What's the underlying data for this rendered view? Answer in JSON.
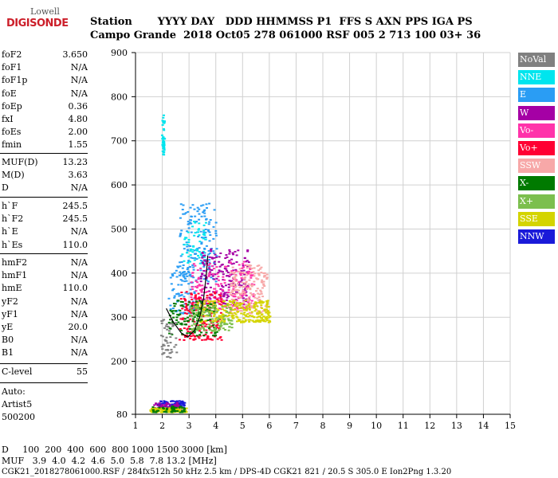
{
  "logo": {
    "line1": "Lowell",
    "line2": "DIGISONDE"
  },
  "header": {
    "row1": "Station       YYYY DAY   DDD HHMMSS P1  FFS S AXN PPS IGA PS",
    "row2": "Campo Grande  2018 Oct05 278 061000 RSF 005 2 713 100 03+ 36"
  },
  "params_group1": [
    {
      "name": "foF2",
      "value": "3.650"
    },
    {
      "name": "foF1",
      "value": "N/A"
    },
    {
      "name": "foF1p",
      "value": "N/A"
    },
    {
      "name": "foE",
      "value": "N/A"
    },
    {
      "name": "foEp",
      "value": "0.36"
    },
    {
      "name": "fxI",
      "value": "4.80"
    },
    {
      "name": "foEs",
      "value": "2.00"
    },
    {
      "name": "fmin",
      "value": "1.55"
    }
  ],
  "params_group2": [
    {
      "name": "MUF(D)",
      "value": "13.23"
    },
    {
      "name": "M(D)",
      "value": "3.63"
    },
    {
      "name": "D",
      "value": "N/A"
    }
  ],
  "params_group3": [
    {
      "name": "h`F",
      "value": "245.5"
    },
    {
      "name": "h`F2",
      "value": "245.5"
    },
    {
      "name": "h`E",
      "value": "N/A"
    },
    {
      "name": "h`Es",
      "value": "110.0"
    }
  ],
  "params_group4": [
    {
      "name": "hmF2",
      "value": "N/A"
    },
    {
      "name": "hmF1",
      "value": "N/A"
    },
    {
      "name": "hmE",
      "value": "110.0"
    },
    {
      "name": "yF2",
      "value": "N/A"
    },
    {
      "name": "yF1",
      "value": "N/A"
    },
    {
      "name": "yE",
      "value": "20.0"
    },
    {
      "name": "B0",
      "value": "N/A"
    },
    {
      "name": "B1",
      "value": "N/A"
    }
  ],
  "clevel": {
    "name": "C-level",
    "value": "55"
  },
  "auto": {
    "line1": "Auto:",
    "line2": "Artist5",
    "line3": "500200"
  },
  "legend": [
    {
      "label": "NoVal",
      "color": "#808080"
    },
    {
      "label": "NNE",
      "color": "#00e5ee"
    },
    {
      "label": "E",
      "color": "#2a9df4"
    },
    {
      "label": "W",
      "color": "#a500a5"
    },
    {
      "label": "Vo-",
      "color": "#ff33aa"
    },
    {
      "label": "Vo+",
      "color": "#ff0033"
    },
    {
      "label": "SSW",
      "color": "#f7a8a8"
    },
    {
      "label": "X-",
      "color": "#007a00"
    },
    {
      "label": "X+",
      "color": "#7cbf4e"
    },
    {
      "label": "SSE",
      "color": "#d4d400"
    },
    {
      "label": "NNW",
      "color": "#1a1ad9"
    }
  ],
  "bottom": {
    "row1": "D     100  200  400  600  800 1000 1500 3000 [km]",
    "row2": "MUF   3.9  4.0  4.2  4.6  5.0  5.8  7.8 13.2 [MHz]",
    "row3": "CGK21_2018278061000.RSF / 284fx512h 50 kHz 2.5 km / DPS-4D CGK21 821 / 20.5 S 305.0 E Ion2Png 1.3.20"
  },
  "chart_data": {
    "type": "scatter",
    "xlim": [
      1,
      15
    ],
    "ylim": [
      80,
      900
    ],
    "xticks": [
      1,
      2,
      3,
      4,
      5,
      6,
      7,
      8,
      9,
      10,
      11,
      12,
      13,
      14,
      15
    ],
    "yticks": [
      80,
      200,
      300,
      400,
      500,
      600,
      700,
      800,
      900
    ],
    "grid": true,
    "clusters": [
      {
        "series": "NNE",
        "x": [
          1.95,
          2.05
        ],
        "y": [
          670,
          760
        ],
        "n": 40
      },
      {
        "series": "E",
        "x": [
          2.6,
          4.0
        ],
        "y": [
          380,
          560
        ],
        "n": 160
      },
      {
        "series": "E",
        "x": [
          2.2,
          3.2
        ],
        "y": [
          310,
          420
        ],
        "n": 80
      },
      {
        "series": "NNE",
        "x": [
          2.7,
          3.6
        ],
        "y": [
          420,
          520
        ],
        "n": 60
      },
      {
        "series": "W",
        "x": [
          3.4,
          5.2
        ],
        "y": [
          330,
          460
        ],
        "n": 200
      },
      {
        "series": "Vo-",
        "x": [
          3.0,
          5.4
        ],
        "y": [
          320,
          430
        ],
        "n": 180
      },
      {
        "series": "Vo+",
        "x": [
          2.6,
          4.2
        ],
        "y": [
          250,
          360
        ],
        "n": 180
      },
      {
        "series": "SSW",
        "x": [
          4.5,
          5.9
        ],
        "y": [
          310,
          420
        ],
        "n": 180
      },
      {
        "series": "SSE",
        "x": [
          3.2,
          6.0
        ],
        "y": [
          290,
          340
        ],
        "n": 260
      },
      {
        "series": "X-",
        "x": [
          2.2,
          4.0
        ],
        "y": [
          260,
          340
        ],
        "n": 120
      },
      {
        "series": "X+",
        "x": [
          3.0,
          4.6
        ],
        "y": [
          270,
          330
        ],
        "n": 120
      },
      {
        "series": "NoVal",
        "x": [
          1.9,
          2.5
        ],
        "y": [
          210,
          300
        ],
        "n": 50
      },
      {
        "series": "NNW",
        "x": [
          1.8,
          2.8
        ],
        "y": [
          92,
          112
        ],
        "n": 120
      },
      {
        "series": "W",
        "x": [
          1.6,
          2.6
        ],
        "y": [
          92,
          108
        ],
        "n": 70
      },
      {
        "series": "SSE",
        "x": [
          1.5,
          2.9
        ],
        "y": [
          86,
          96
        ],
        "n": 120
      },
      {
        "series": "X-",
        "x": [
          1.6,
          2.8
        ],
        "y": [
          86,
          100
        ],
        "n": 50
      }
    ],
    "trace": [
      {
        "x": 2.15,
        "y": 320
      },
      {
        "x": 2.4,
        "y": 290
      },
      {
        "x": 2.7,
        "y": 265
      },
      {
        "x": 2.95,
        "y": 255
      },
      {
        "x": 3.2,
        "y": 270
      },
      {
        "x": 3.4,
        "y": 300
      },
      {
        "x": 3.55,
        "y": 345
      },
      {
        "x": 3.65,
        "y": 400
      },
      {
        "x": 3.7,
        "y": 440
      }
    ]
  }
}
